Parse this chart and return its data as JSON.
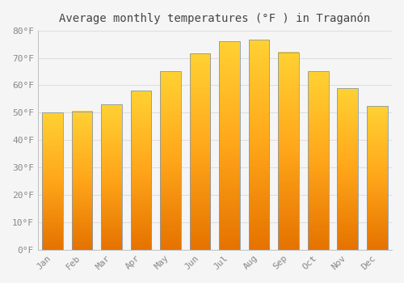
{
  "title": "Average monthly temperatures (°F ) in Traganón",
  "months": [
    "Jan",
    "Feb",
    "Mar",
    "Apr",
    "May",
    "Jun",
    "Jul",
    "Aug",
    "Sep",
    "Oct",
    "Nov",
    "Dec"
  ],
  "values": [
    50,
    50.5,
    53,
    58,
    65,
    71.5,
    76,
    76.5,
    72,
    65,
    59,
    52.5
  ],
  "bar_color_main": "#FFA500",
  "bar_color_top": "#FFD040",
  "bar_color_bottom": "#E08000",
  "bar_edge_color": "#8899AA",
  "background_color": "#F5F5F5",
  "plot_bg_color": "#F5F5F5",
  "grid_color": "#DDDDDD",
  "tick_label_color": "#888888",
  "title_color": "#444444",
  "ylim": [
    0,
    80
  ],
  "yticks": [
    0,
    10,
    20,
    30,
    40,
    50,
    60,
    70,
    80
  ],
  "ytick_labels": [
    "0°F",
    "10°F",
    "20°F",
    "30°F",
    "40°F",
    "50°F",
    "60°F",
    "70°F",
    "80°F"
  ],
  "title_fontsize": 10,
  "tick_fontsize": 8
}
